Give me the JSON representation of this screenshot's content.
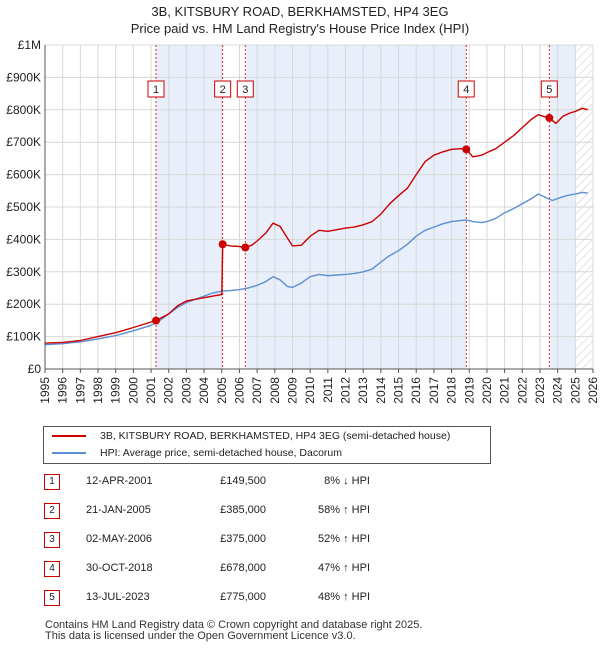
{
  "title_line1": "3B, KITSBURY ROAD, BERKHAMSTED, HP4 3EG",
  "title_line2": "Price paid vs. HM Land Registry's House Price Index (HPI)",
  "chart_data": {
    "type": "line",
    "title": "3B, KITSBURY ROAD, BERKHAMSTED, HP4 3EG — Price paid vs. HM Land Registry's House Price Index (HPI)",
    "xlim": [
      1995,
      2026
    ],
    "ylim": [
      0,
      1000000
    ],
    "y_ticks": [
      {
        "value": 0,
        "label": "£0"
      },
      {
        "value": 100000,
        "label": "£100K"
      },
      {
        "value": 200000,
        "label": "£200K"
      },
      {
        "value": 300000,
        "label": "£300K"
      },
      {
        "value": 400000,
        "label": "£400K"
      },
      {
        "value": 500000,
        "label": "£500K"
      },
      {
        "value": 600000,
        "label": "£600K"
      },
      {
        "value": 700000,
        "label": "£700K"
      },
      {
        "value": 800000,
        "label": "£800K"
      },
      {
        "value": 900000,
        "label": "£900K"
      },
      {
        "value": 1000000,
        "label": "£1M"
      }
    ],
    "x_ticks": [
      "1995",
      "1996",
      "1997",
      "1998",
      "1999",
      "2000",
      "2001",
      "2002",
      "2003",
      "2004",
      "2005",
      "2006",
      "2007",
      "2008",
      "2009",
      "2010",
      "2011",
      "2012",
      "2013",
      "2014",
      "2015",
      "2016",
      "2017",
      "2018",
      "2019",
      "2020",
      "2021",
      "2022",
      "2023",
      "2024",
      "2025",
      "2026"
    ],
    "grid": true,
    "shaded_spans": [
      [
        2001.28,
        2005.05
      ],
      [
        2006.33,
        2018.83
      ],
      [
        2023.53,
        2026
      ]
    ],
    "hatched_from": 2025.0,
    "series": [
      {
        "name": "3B, KITSBURY ROAD, BERKHAMSTED, HP4 3EG (semi-detached house)",
        "color": "#cc0000",
        "points": [
          [
            1995.0,
            80000
          ],
          [
            1996.0,
            82000
          ],
          [
            1997.0,
            88000
          ],
          [
            1998.0,
            100000
          ],
          [
            1999.0,
            112000
          ],
          [
            2000.0,
            128000
          ],
          [
            2001.0,
            145000
          ],
          [
            2001.28,
            149500
          ],
          [
            2002.0,
            170000
          ],
          [
            2002.5,
            195000
          ],
          [
            2003.0,
            210000
          ],
          [
            2003.5,
            215000
          ],
          [
            2004.0,
            220000
          ],
          [
            2004.5,
            225000
          ],
          [
            2005.0,
            230000
          ],
          [
            2005.05,
            385000
          ],
          [
            2005.5,
            380000
          ],
          [
            2006.0,
            378000
          ],
          [
            2006.33,
            375000
          ],
          [
            2006.7,
            382000
          ],
          [
            2007.0,
            395000
          ],
          [
            2007.5,
            420000
          ],
          [
            2007.9,
            450000
          ],
          [
            2008.3,
            440000
          ],
          [
            2008.7,
            405000
          ],
          [
            2009.0,
            380000
          ],
          [
            2009.5,
            382000
          ],
          [
            2010.0,
            410000
          ],
          [
            2010.5,
            428000
          ],
          [
            2011.0,
            425000
          ],
          [
            2011.5,
            430000
          ],
          [
            2012.0,
            435000
          ],
          [
            2012.5,
            438000
          ],
          [
            2013.0,
            445000
          ],
          [
            2013.5,
            455000
          ],
          [
            2014.0,
            478000
          ],
          [
            2014.5,
            510000
          ],
          [
            2015.0,
            535000
          ],
          [
            2015.5,
            558000
          ],
          [
            2016.0,
            600000
          ],
          [
            2016.5,
            640000
          ],
          [
            2017.0,
            660000
          ],
          [
            2017.5,
            670000
          ],
          [
            2018.0,
            678000
          ],
          [
            2018.5,
            680000
          ],
          [
            2018.83,
            678000
          ],
          [
            2019.2,
            655000
          ],
          [
            2019.7,
            660000
          ],
          [
            2020.0,
            668000
          ],
          [
            2020.5,
            680000
          ],
          [
            2021.0,
            700000
          ],
          [
            2021.5,
            720000
          ],
          [
            2022.0,
            745000
          ],
          [
            2022.5,
            770000
          ],
          [
            2022.9,
            785000
          ],
          [
            2023.2,
            780000
          ],
          [
            2023.53,
            775000
          ],
          [
            2023.9,
            758000
          ],
          [
            2024.3,
            780000
          ],
          [
            2024.7,
            790000
          ],
          [
            2025.0,
            795000
          ],
          [
            2025.4,
            805000
          ],
          [
            2025.7,
            800000
          ]
        ]
      },
      {
        "name": "HPI: Average price, semi-detached house, Dacorum",
        "color": "#5b8fd2",
        "points": [
          [
            1995.0,
            75000
          ],
          [
            1996.0,
            78000
          ],
          [
            1997.0,
            84000
          ],
          [
            1998.0,
            93000
          ],
          [
            1999.0,
            103000
          ],
          [
            2000.0,
            118000
          ],
          [
            2001.0,
            135000
          ],
          [
            2001.5,
            150000
          ],
          [
            2002.0,
            170000
          ],
          [
            2002.5,
            190000
          ],
          [
            2003.0,
            205000
          ],
          [
            2003.5,
            215000
          ],
          [
            2004.0,
            225000
          ],
          [
            2004.5,
            235000
          ],
          [
            2005.0,
            240000
          ],
          [
            2005.5,
            242000
          ],
          [
            2006.0,
            245000
          ],
          [
            2006.5,
            250000
          ],
          [
            2007.0,
            258000
          ],
          [
            2007.5,
            270000
          ],
          [
            2007.9,
            285000
          ],
          [
            2008.3,
            275000
          ],
          [
            2008.7,
            255000
          ],
          [
            2009.0,
            252000
          ],
          [
            2009.5,
            265000
          ],
          [
            2010.0,
            285000
          ],
          [
            2010.5,
            292000
          ],
          [
            2011.0,
            288000
          ],
          [
            2011.5,
            290000
          ],
          [
            2012.0,
            292000
          ],
          [
            2012.5,
            295000
          ],
          [
            2013.0,
            300000
          ],
          [
            2013.5,
            308000
          ],
          [
            2014.0,
            330000
          ],
          [
            2014.5,
            350000
          ],
          [
            2015.0,
            365000
          ],
          [
            2015.5,
            385000
          ],
          [
            2016.0,
            410000
          ],
          [
            2016.5,
            428000
          ],
          [
            2017.0,
            438000
          ],
          [
            2017.5,
            448000
          ],
          [
            2018.0,
            455000
          ],
          [
            2018.5,
            458000
          ],
          [
            2018.83,
            460000
          ],
          [
            2019.2,
            455000
          ],
          [
            2019.7,
            452000
          ],
          [
            2020.0,
            455000
          ],
          [
            2020.5,
            465000
          ],
          [
            2021.0,
            482000
          ],
          [
            2021.5,
            495000
          ],
          [
            2022.0,
            510000
          ],
          [
            2022.5,
            525000
          ],
          [
            2022.9,
            540000
          ],
          [
            2023.3,
            530000
          ],
          [
            2023.7,
            520000
          ],
          [
            2024.1,
            528000
          ],
          [
            2024.5,
            535000
          ],
          [
            2025.0,
            540000
          ],
          [
            2025.4,
            545000
          ],
          [
            2025.7,
            543000
          ]
        ]
      }
    ],
    "markers": [
      {
        "label": "1",
        "x": 2001.28,
        "y": 149500
      },
      {
        "label": "2",
        "x": 2005.05,
        "y": 385000
      },
      {
        "label": "3",
        "x": 2006.33,
        "y": 375000
      },
      {
        "label": "4",
        "x": 2018.83,
        "y": 678000
      },
      {
        "label": "5",
        "x": 2023.53,
        "y": 775000
      }
    ]
  },
  "legend": {
    "property": "3B, KITSBURY ROAD, BERKHAMSTED, HP4 3EG (semi-detached house)",
    "hpi": "HPI: Average price, semi-detached house, Dacorum"
  },
  "sales": [
    {
      "num": "1",
      "date": "12-APR-2001",
      "price": "£149,500",
      "hpi": "8% ↓ HPI"
    },
    {
      "num": "2",
      "date": "21-JAN-2005",
      "price": "£385,000",
      "hpi": "58% ↑ HPI"
    },
    {
      "num": "3",
      "date": "02-MAY-2006",
      "price": "£375,000",
      "hpi": "52% ↑ HPI"
    },
    {
      "num": "4",
      "date": "30-OCT-2018",
      "price": "£678,000",
      "hpi": "47% ↑ HPI"
    },
    {
      "num": "5",
      "date": "13-JUL-2023",
      "price": "£775,000",
      "hpi": "48% ↑ HPI"
    }
  ],
  "footer_line1": "Contains HM Land Registry data © Crown copyright and database right 2025.",
  "footer_line2": "This data is licensed under the Open Government Licence v3.0."
}
